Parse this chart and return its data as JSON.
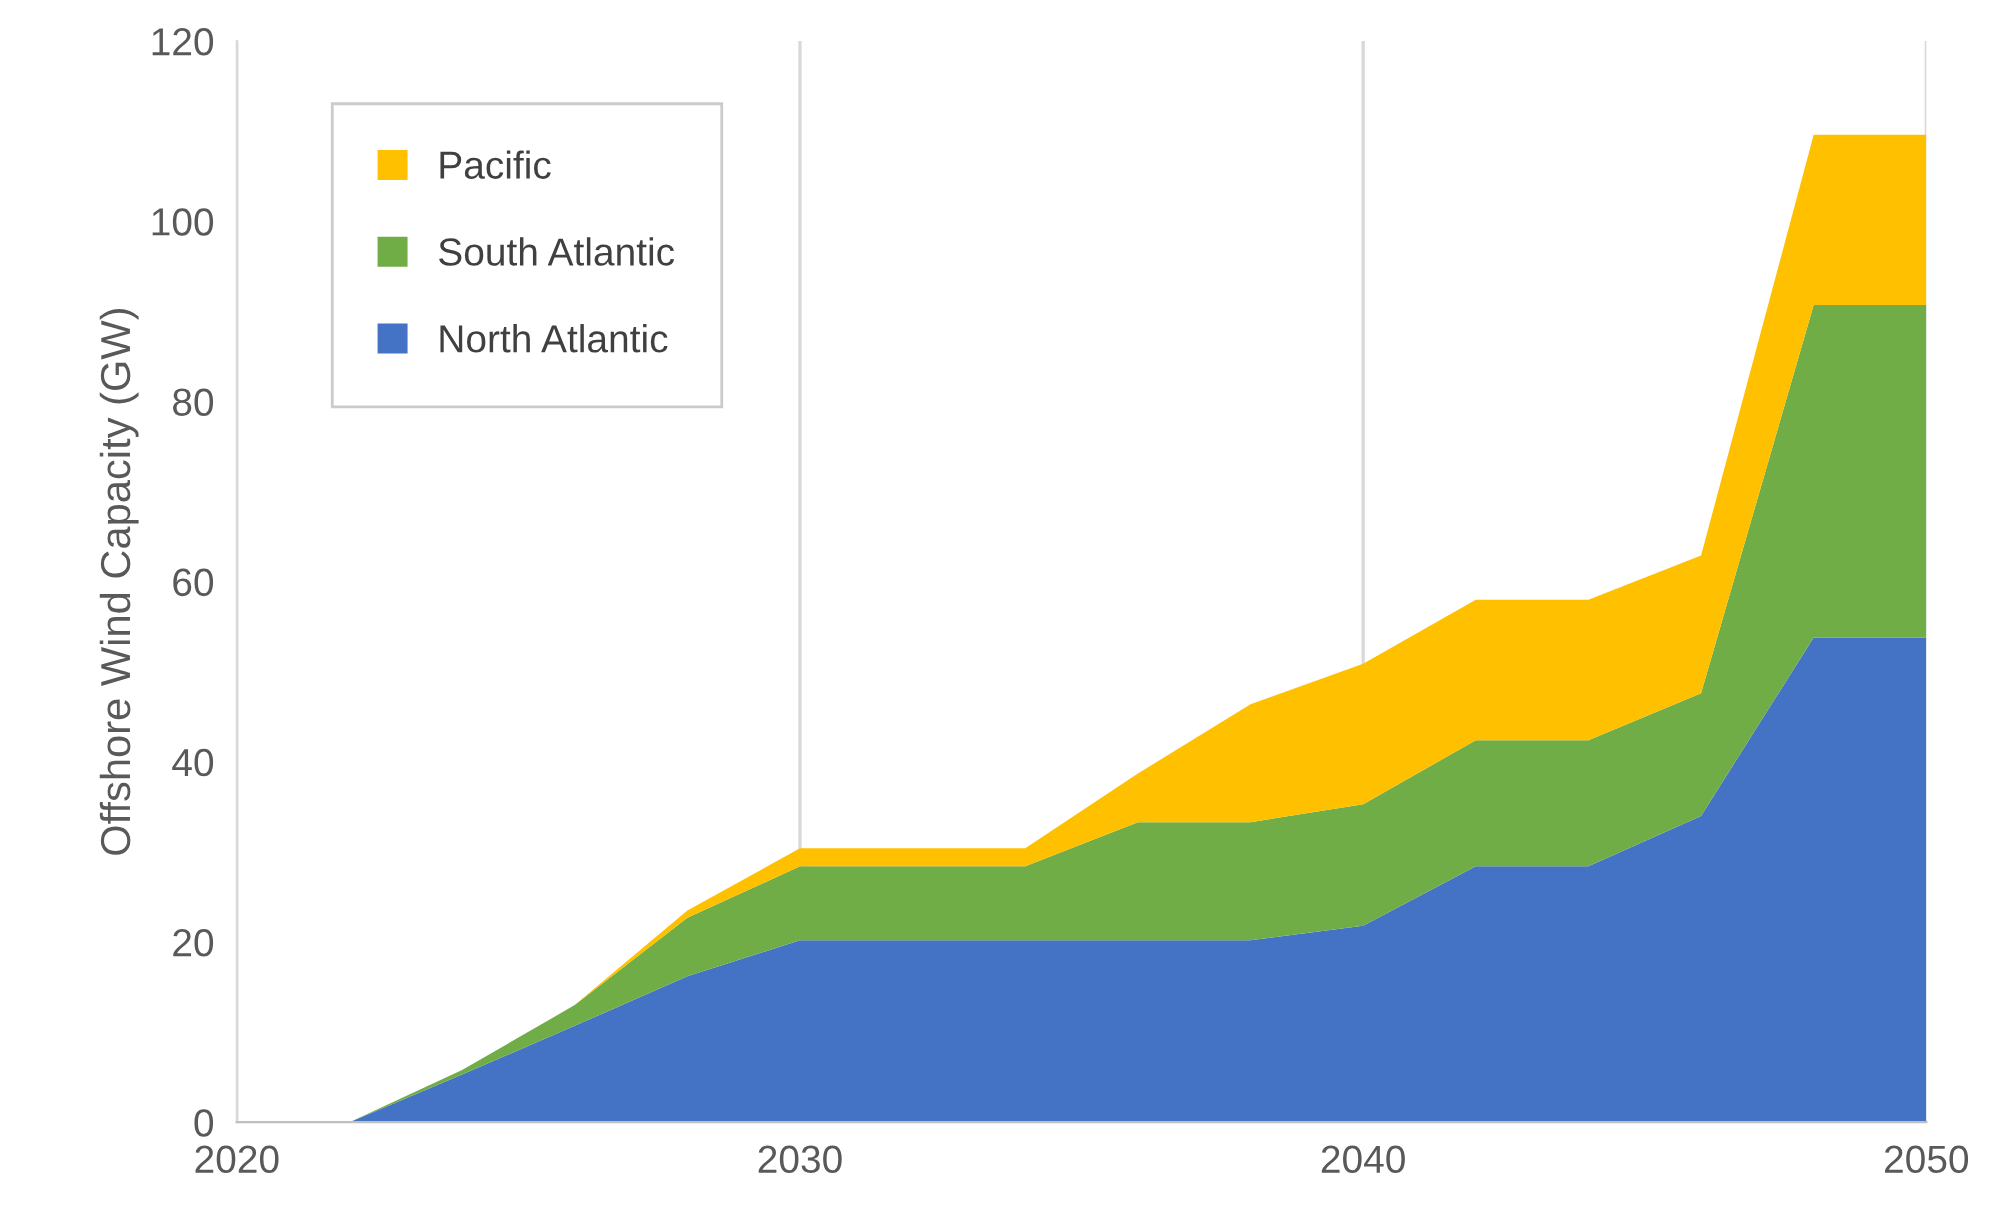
{
  "chart_data": {
    "type": "area",
    "stacked": true,
    "ylabel": "Offshore Wind Capacity (GW)",
    "x": [
      2022,
      2024,
      2026,
      2028,
      2030,
      2032,
      2034,
      2036,
      2038,
      2040,
      2042,
      2044,
      2046,
      2048,
      2050
    ],
    "series": [
      {
        "name": "North Atlantic",
        "color": "#4472c4",
        "values": [
          0,
          5.3,
          10.7,
          16.2,
          20.2,
          20.2,
          20.2,
          20.2,
          20.2,
          21.8,
          28.4,
          28.4,
          34,
          53.8,
          53.8
        ]
      },
      {
        "name": "South Atlantic",
        "color": "#70ad47",
        "values": [
          0,
          0.5,
          2.3,
          6.5,
          8.2,
          8.2,
          8.2,
          13.1,
          13.1,
          13.5,
          14,
          14,
          13.6,
          36.9,
          36.9
        ]
      },
      {
        "name": "Pacific",
        "color": "#ffc000",
        "values": [
          0,
          0,
          0,
          0.8,
          2,
          2,
          2,
          5.4,
          13.1,
          15.6,
          15.6,
          15.6,
          15.3,
          18.9,
          18.9
        ]
      }
    ],
    "xlim": [
      2020,
      2050
    ],
    "xticks": [
      2020,
      2030,
      2040,
      2050
    ],
    "ylim": [
      0,
      120
    ],
    "yticks": [
      0,
      20,
      40,
      60,
      80,
      100,
      120
    ],
    "grid": "x",
    "legend": "top left"
  }
}
